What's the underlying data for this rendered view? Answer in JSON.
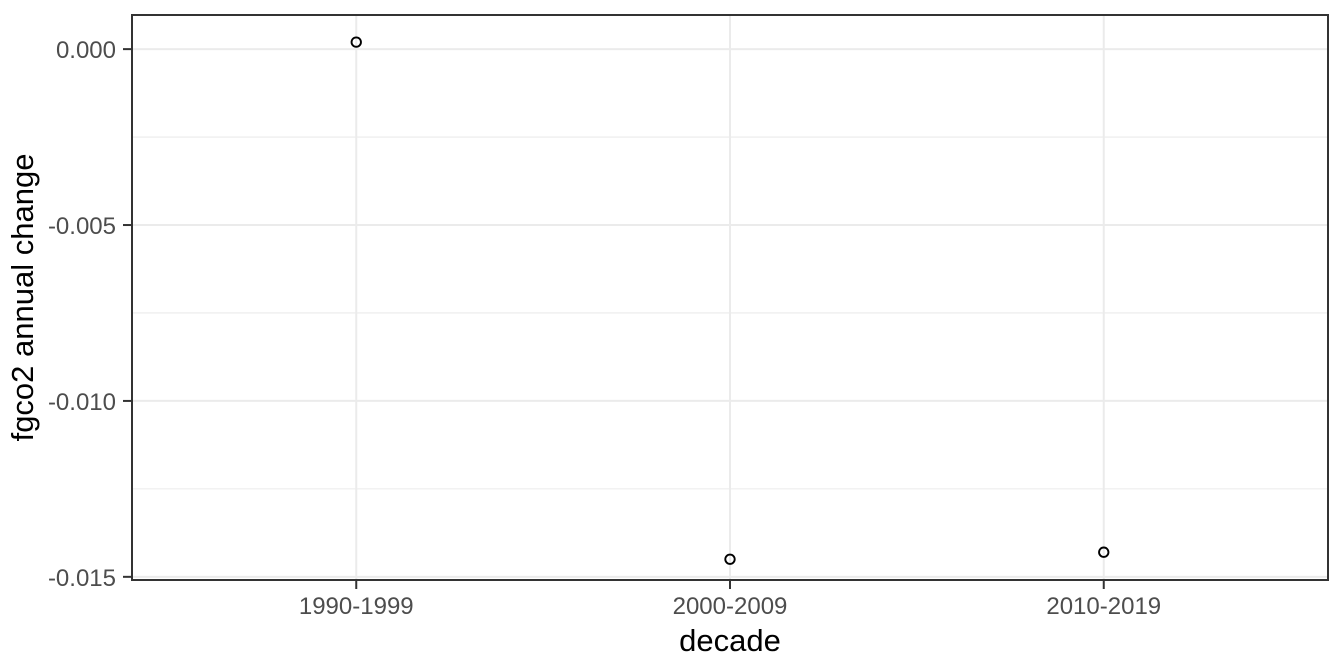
{
  "chart_data": {
    "type": "scatter",
    "title": "",
    "xlabel": "decade",
    "ylabel": "fgco2 annual change",
    "categories": [
      "1990-1999",
      "2000-2009",
      "2010-2019"
    ],
    "values": [
      0.0002,
      -0.0145,
      -0.0143
    ],
    "ylim": [
      -0.01509,
      0.00097
    ],
    "y_major_ticks": [
      0,
      -0.005,
      -0.01,
      -0.015
    ],
    "y_tick_labels": [
      "0.000",
      "-0.005",
      "-0.010",
      "-0.015"
    ],
    "y_minor_ticks": [
      -0.0025,
      -0.0075,
      -0.0125
    ],
    "grid": "horizontal-major-minor, vertical-major",
    "legend_position": "none",
    "marker": "open-circle",
    "colors": {
      "background": "#ffffff",
      "panel_background": "#ffffff",
      "panel_border": "#333333",
      "grid": "#ebebeb",
      "tick_mark": "#333333",
      "tick_label": "#4d4d4d",
      "axis_title": "#000000",
      "point_stroke": "#000000"
    }
  }
}
